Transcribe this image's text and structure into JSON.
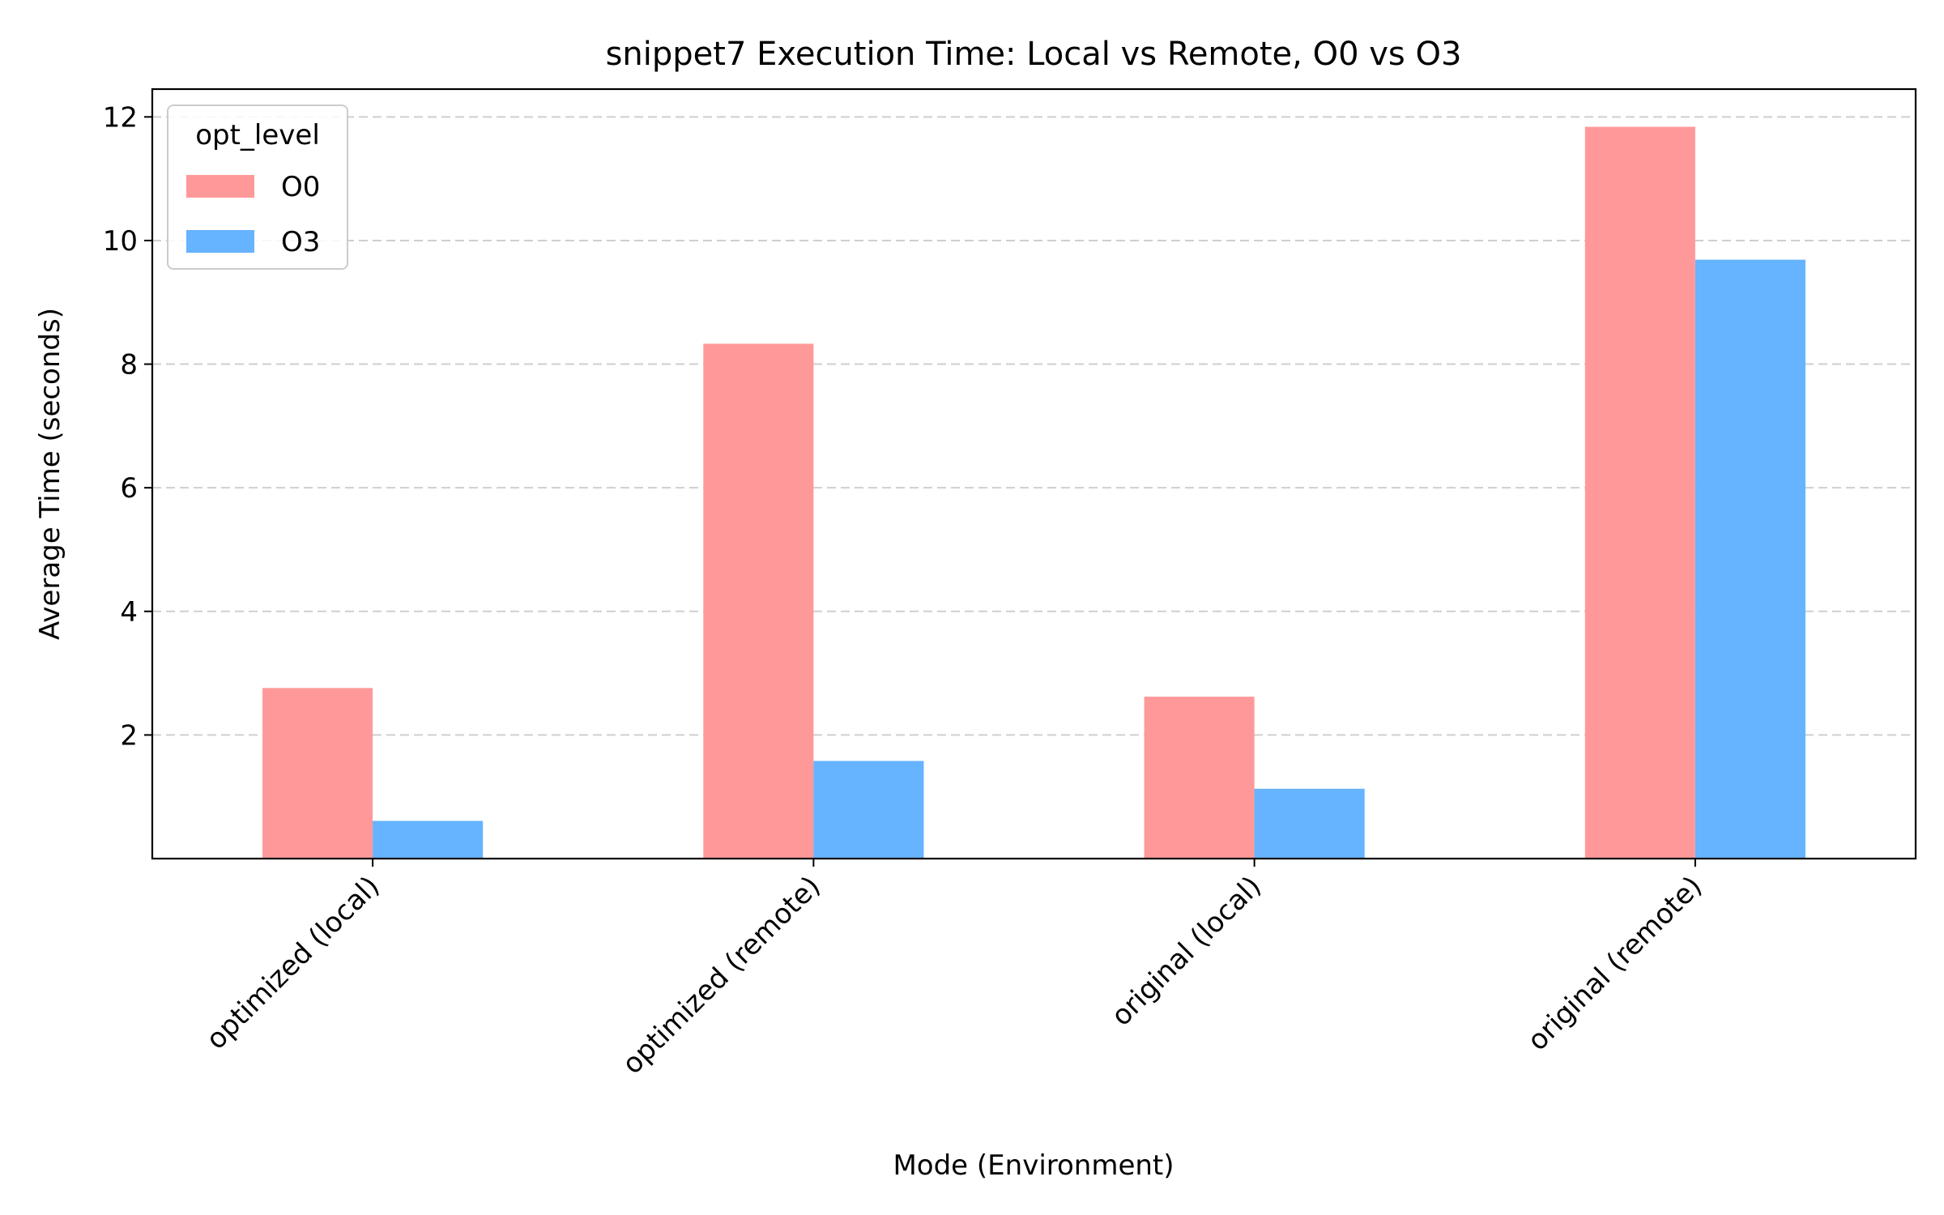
{
  "chart_data": {
    "type": "bar",
    "title": "snippet7 Execution Time: Local vs Remote, O0 vs O3",
    "xlabel": "Mode (Environment)",
    "ylabel": "Average Time (seconds)",
    "categories": [
      "optimized (local)",
      "optimized (remote)",
      "original (local)",
      "original (remote)"
    ],
    "series": [
      {
        "name": "O0",
        "color": "#ff9999",
        "values": [
          2.76,
          8.33,
          2.62,
          11.84
        ]
      },
      {
        "name": "O3",
        "color": "#66b3ff",
        "values": [
          0.61,
          1.58,
          1.13,
          9.69
        ]
      }
    ],
    "ylim": [
      0,
      12.45
    ],
    "yticks": [
      2,
      4,
      6,
      8,
      10,
      12
    ],
    "grid": "y dashed",
    "legend": {
      "title": "opt_level",
      "placement": "top-left"
    }
  }
}
